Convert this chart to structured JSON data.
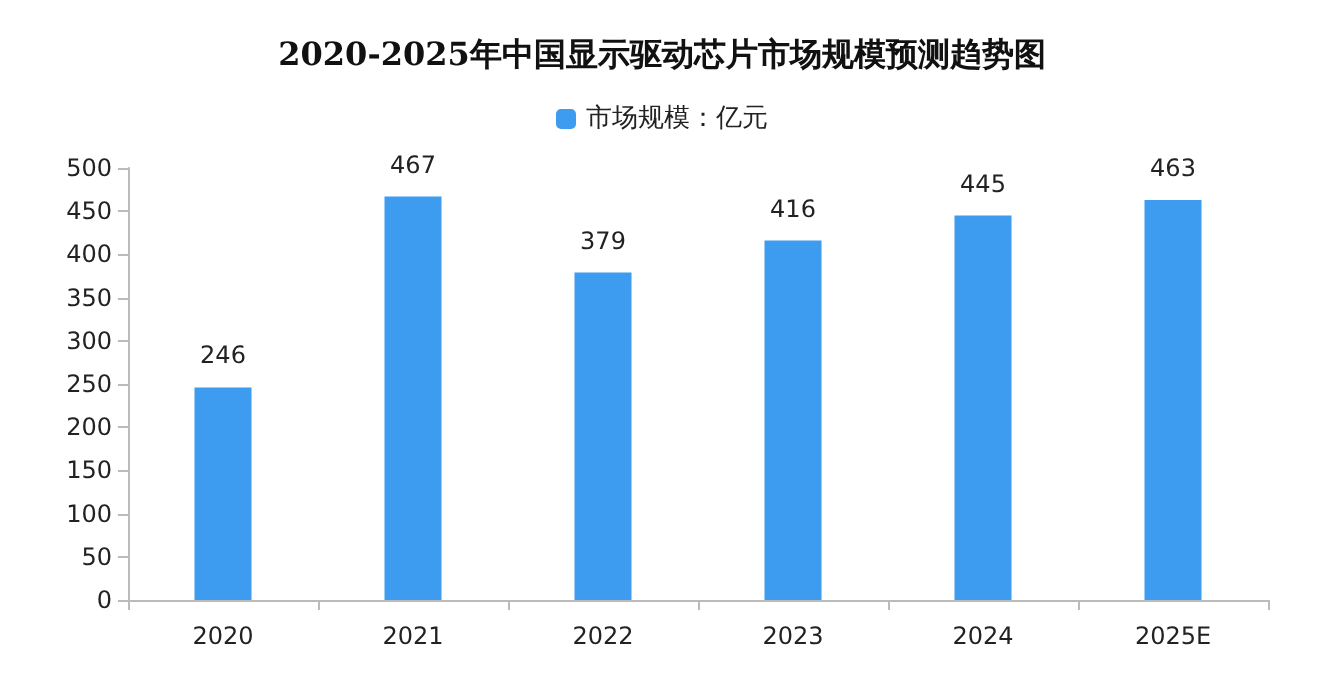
{
  "chart_data": {
    "type": "bar",
    "title": "2020-2025年中国显示驱动芯片市场规模预测趋势图",
    "categories": [
      "2020",
      "2021",
      "2022",
      "2023",
      "2024",
      "2025E"
    ],
    "series": [
      {
        "name": "市场规模：亿元",
        "color": "#3d9cf0",
        "values": [
          246,
          467,
          379,
          416,
          445,
          463
        ]
      }
    ],
    "ylim": [
      0,
      500
    ],
    "yticks": [
      0,
      50,
      100,
      150,
      200,
      250,
      300,
      350,
      400,
      450,
      500
    ],
    "grid": false,
    "legend": "top",
    "data_labels": true
  }
}
